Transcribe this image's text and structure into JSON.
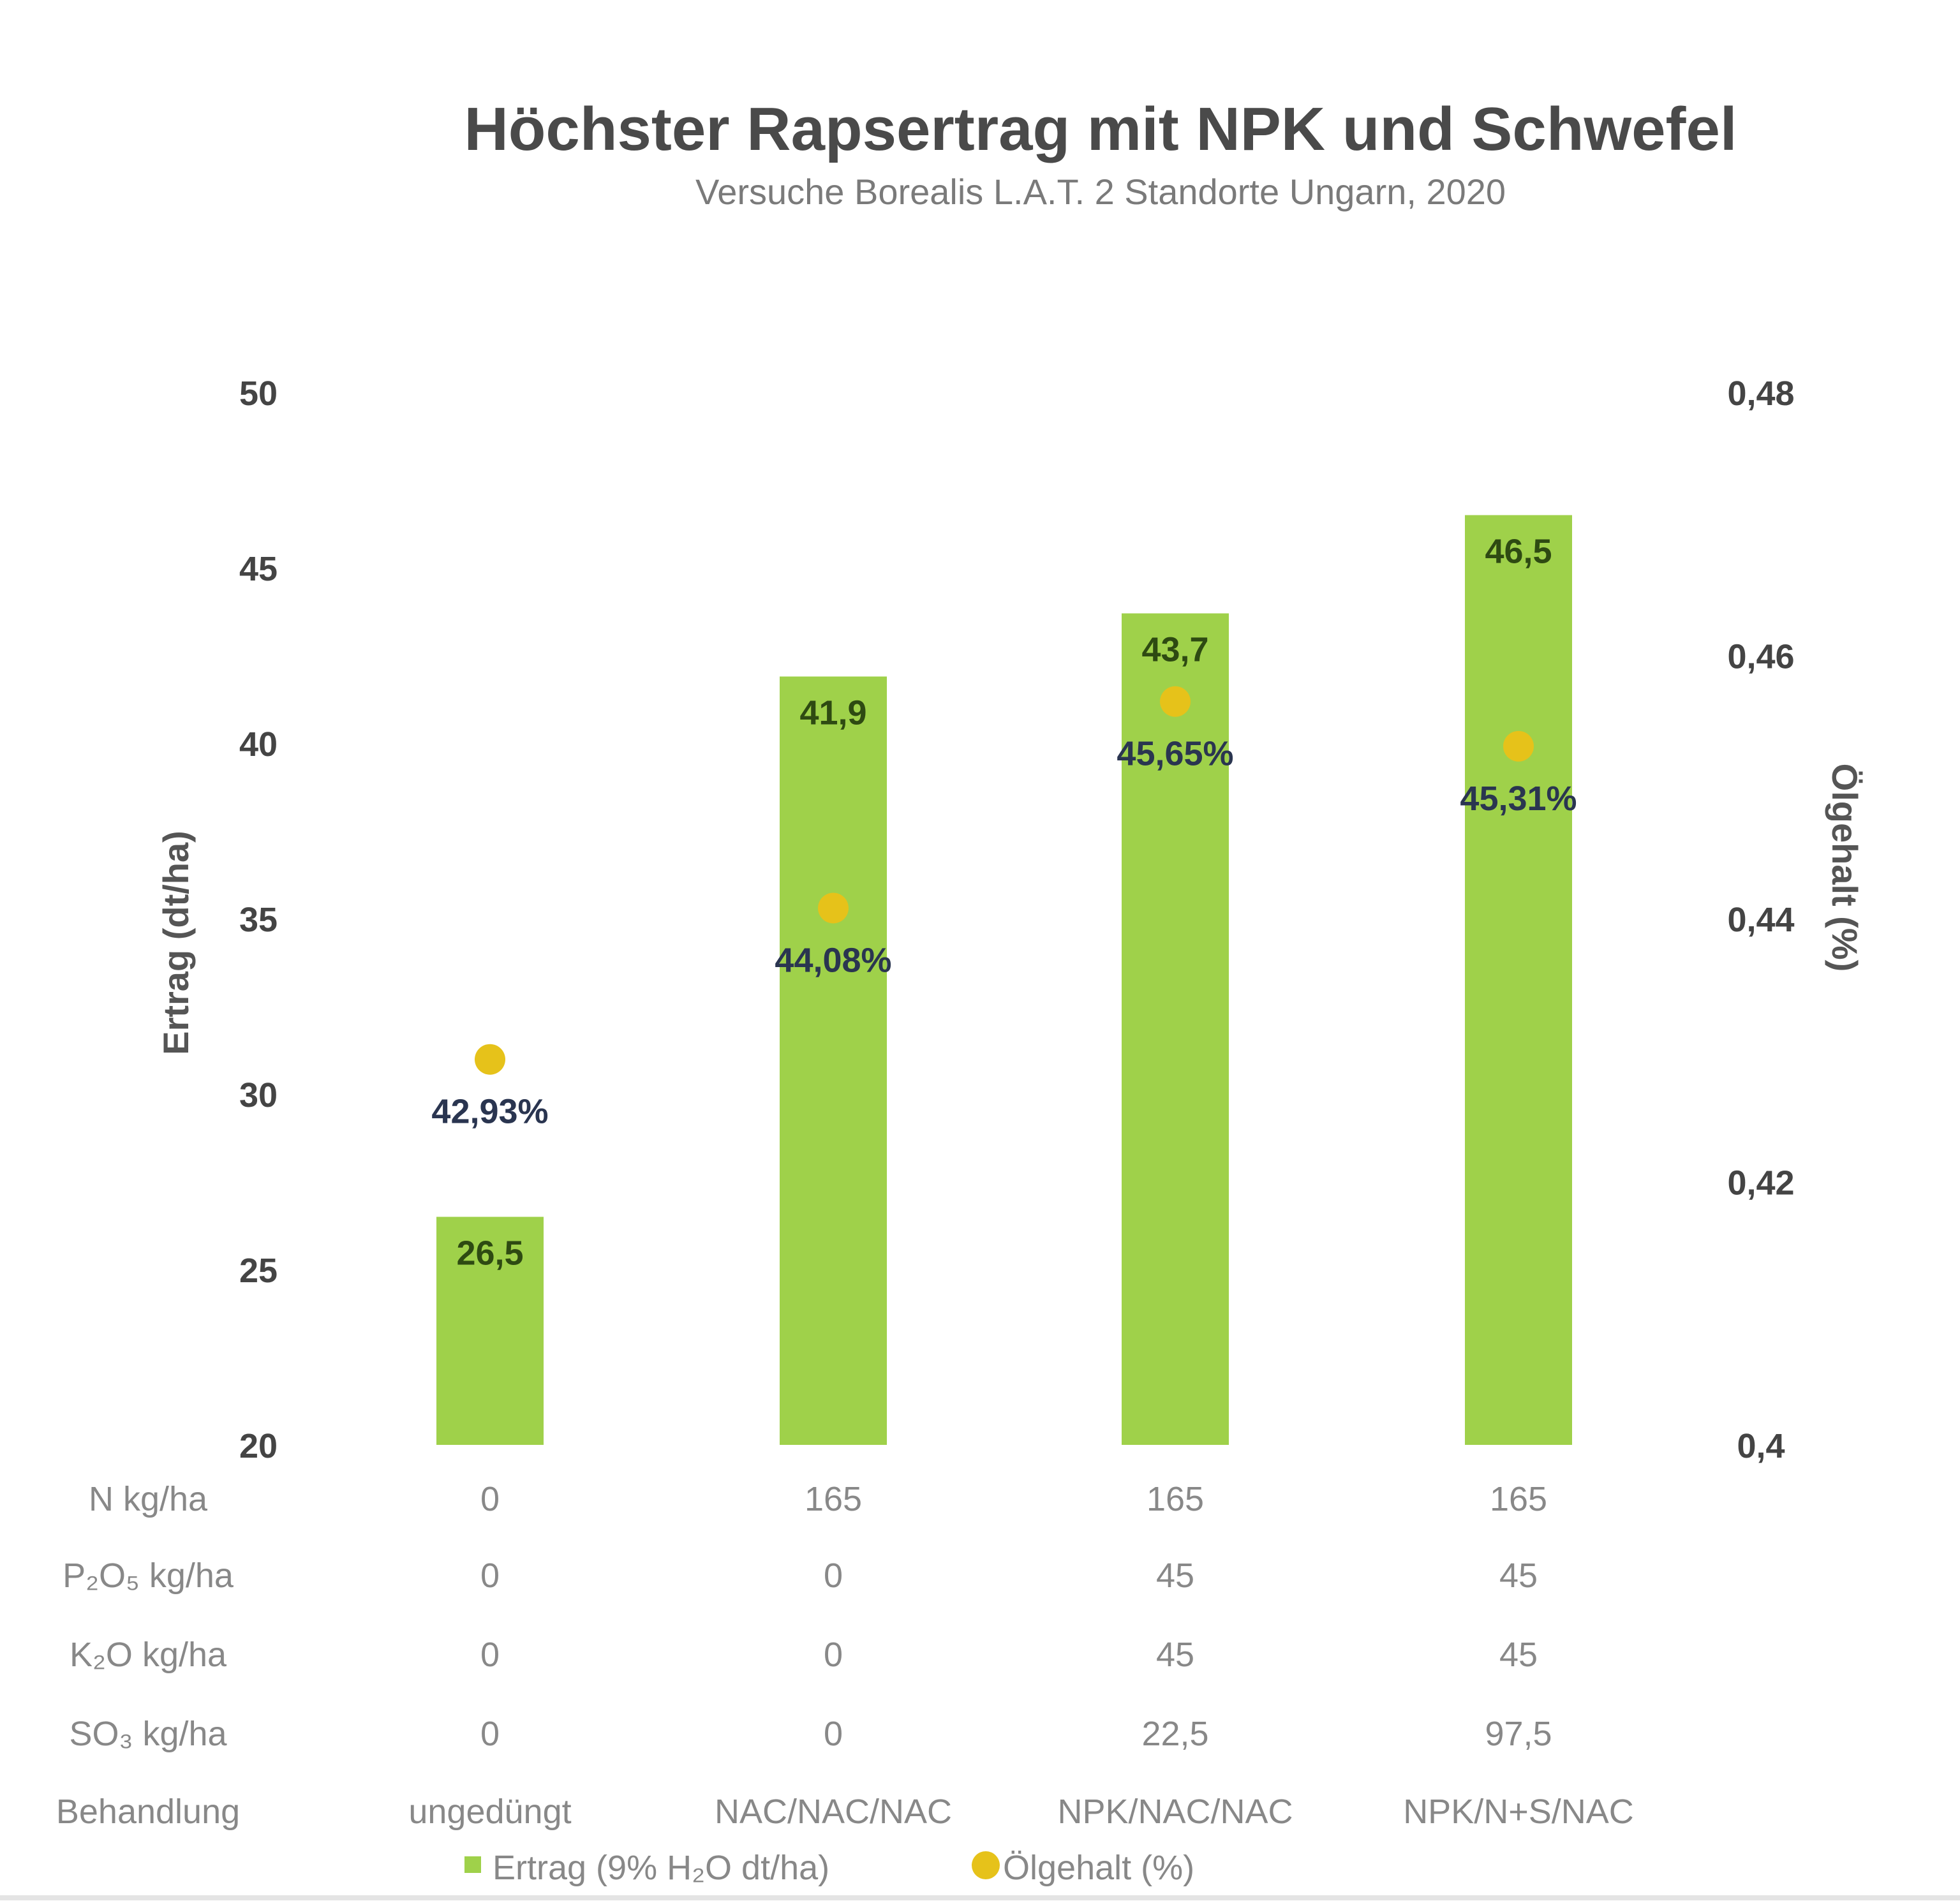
{
  "chart_data": {
    "type": "bar",
    "title": "Höchster Rapsertrag mit NPK und Schwefel",
    "subtitle": "Versuche Borealis L.A.T. 2 Standorte Ungarn, 2020",
    "categories": [
      "ungedüngt",
      "NAC/NAC/NAC",
      "NPK/NAC/NAC",
      "NPK/N+S/NAC"
    ],
    "ylabel": "Ertrag (dt/ha)",
    "ylabel_right": "Ölgehalt (%)",
    "ylim": [
      20,
      50
    ],
    "yticks": [
      "20",
      "25",
      "30",
      "35",
      "40",
      "45",
      "50"
    ],
    "ylim_right": [
      0.4,
      0.48
    ],
    "yticks_right": [
      "0,4",
      "0,42",
      "0,44",
      "0,46",
      "0,48"
    ],
    "grid": false,
    "legend_position": "bottom",
    "series": [
      {
        "name": "Ertrag (9% H₂O dt/ha)",
        "type": "bar",
        "color": "#9fd14a",
        "values": [
          26.5,
          41.9,
          43.7,
          46.5
        ],
        "labels": [
          "26,5",
          "41,9",
          "43,7",
          "46,5"
        ]
      },
      {
        "name": "Ölgehalt (%)",
        "type": "scatter",
        "axis": "right",
        "color": "#e6c21a",
        "values": [
          0.4293,
          0.4408,
          0.4565,
          0.4531
        ],
        "labels": [
          "42,93%",
          "44,08%",
          "45,65%",
          "45,31%"
        ]
      }
    ],
    "table": {
      "rows": [
        {
          "label": "N kg/ha",
          "values": [
            "0",
            "165",
            "165",
            "165"
          ]
        },
        {
          "label": "P₂O₅ kg/ha",
          "values": [
            "0",
            "0",
            "45",
            "45"
          ]
        },
        {
          "label": "K₂O kg/ha",
          "values": [
            "0",
            "0",
            "45",
            "45"
          ]
        },
        {
          "label": "SO₃ kg/ha",
          "values": [
            "0",
            "0",
            "22,5",
            "97,5"
          ]
        }
      ],
      "category_row_label": "Behandlung"
    }
  }
}
